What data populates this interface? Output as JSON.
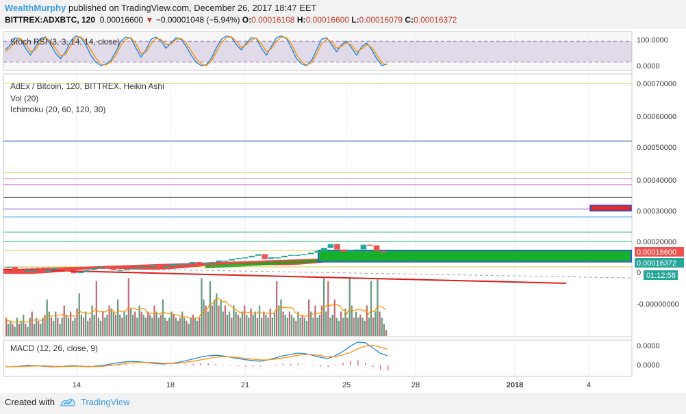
{
  "header": {
    "author": "WealthMurphy",
    "published_text": "published on TradingView.com, December 26, 2017 18:47 EET",
    "symbol": "BITTREX:ADXBTC, 120",
    "last": "0.00016600",
    "change": "−0.00001048 (−5.94%)",
    "o_label": "O:",
    "o_value": "0.00016108",
    "h_label": "H:",
    "h_value": "0.00016600",
    "l_label": "L:",
    "l_value": "0.00016079",
    "c_label": "C:",
    "c_value": "0.00016372"
  },
  "footer": {
    "created_with": "Created with",
    "brand": "TradingView"
  },
  "colors": {
    "bull": "#26a69a",
    "bear": "#ef5350",
    "rsi_band": "#5c2d91",
    "kumo": "#1aa31a",
    "trend_line": "#e0191b",
    "accent": "#3b9de0"
  },
  "chart_data": [
    {
      "type": "line",
      "name": "stoch_rsi",
      "title": "Stoch RSI (3, 3, 14, 14, close)",
      "y_tick_labels": [
        "100.0000",
        "0.0000"
      ],
      "ylim": [
        0,
        100
      ],
      "band": [
        20,
        80
      ],
      "series": [
        {
          "values": [
            55,
            70,
            90,
            85,
            60,
            40,
            65,
            88,
            92,
            70,
            45,
            30,
            50,
            80,
            95,
            90,
            70,
            40,
            20,
            10,
            15,
            25,
            50,
            80,
            92,
            88,
            60,
            35,
            55,
            85,
            92,
            80,
            60,
            75,
            90,
            85,
            65,
            40,
            20,
            10,
            12,
            30,
            60,
            85,
            95,
            92,
            70,
            55,
            75,
            90,
            88,
            60,
            40,
            65,
            90,
            95,
            88,
            60,
            30,
            15,
            10,
            25,
            55,
            85,
            90,
            70,
            50,
            70,
            80,
            60,
            40,
            65,
            75,
            55,
            30,
            10,
            15
          ]
        },
        {
          "values": [
            50,
            62,
            80,
            88,
            72,
            50,
            55,
            78,
            90,
            80,
            58,
            38,
            42,
            68,
            88,
            92,
            80,
            55,
            32,
            15,
            12,
            20,
            40,
            68,
            85,
            90,
            72,
            45,
            48,
            72,
            88,
            85,
            70,
            72,
            85,
            88,
            75,
            52,
            30,
            15,
            10,
            22,
            48,
            75,
            90,
            93,
            80,
            62,
            70,
            84,
            89,
            72,
            50,
            58,
            80,
            92,
            90,
            72,
            42,
            22,
            12,
            18,
            42,
            72,
            86,
            78,
            60,
            65,
            76,
            68,
            50,
            58,
            70,
            62,
            42,
            18,
            12
          ]
        }
      ]
    },
    {
      "type": "candlestick",
      "name": "price",
      "title": "AdEx / Bitcoin, 120, BITTREX, Heikin Ashi",
      "indicators": [
        "Vol (20)",
        "Ichimoku (20, 60, 120, 30)"
      ],
      "x_tick_labels": [
        "14",
        "18",
        "21",
        "25",
        "28",
        "2018",
        "4"
      ],
      "y_tick_labels": [
        "0.00070000",
        "0.00060000",
        "0.00050000",
        "0.00040000",
        "0.00030000",
        "0.00020000",
        "0",
        "-0.00000000"
      ],
      "price_tags": {
        "last": "0.00016600",
        "close": "0.00016372",
        "countdown": "01:12:58"
      },
      "horizontal_levels": [
        0.0007,
        0.000518,
        0.000418,
        0.0004,
        0.00038,
        0.00034,
        0.000303,
        0.000278,
        0.00023,
        0.000201,
        0.000172,
        0.00012
      ],
      "price_path": [
        0.00012,
        0.00011,
        0.000105,
        0.00011,
        0.00011,
        0.000105,
        0.00011,
        0.000115,
        0.00011,
        0.000105,
        0.0001,
        0.000105,
        0.00011,
        0.000115,
        0.00012,
        0.000115,
        0.00011,
        0.00011,
        0.000112,
        0.000115,
        0.00012,
        0.00012,
        0.000125,
        0.00012,
        0.000122,
        0.000128,
        0.00013,
        0.00013,
        0.000135,
        0.000128,
        0.000132,
        0.000135,
        0.00014,
        0.00014,
        0.000145,
        0.000148,
        0.00015,
        0.000155,
        0.00016,
        0.000145,
        0.00015,
        0.00015,
        0.000155,
        0.000158,
        0.000158,
        0.00016,
        0.000165,
        0.00017,
        0.00018,
        0.000192,
        0.000175,
        0.000168,
        0.000172,
        0.000175,
        0.00019,
        0.000188,
        0.00017,
        0.000166
      ],
      "trend_line": [
        [
          0.0001,
          9e-05
        ],
        [
          0.0,
          0.00012
        ]
      ],
      "volume": [
        0.3,
        0.2,
        0.25,
        0.2,
        0.15,
        0.3,
        0.2,
        0.25,
        0.35,
        0.2,
        0.15,
        0.3,
        0.4,
        0.2,
        0.3,
        0.25,
        0.2,
        0.3,
        0.35,
        0.6,
        0.4,
        0.3,
        0.25,
        0.4,
        0.3,
        0.2,
        0.3,
        0.5,
        0.35,
        0.3,
        0.4,
        0.25,
        0.3,
        0.45,
        0.7,
        0.35,
        0.3,
        0.4,
        0.25,
        0.3,
        0.5,
        0.35,
        0.9,
        0.3,
        0.25,
        0.4,
        0.3,
        0.35,
        0.5,
        0.45,
        0.4,
        0.35,
        0.6,
        0.35,
        0.3,
        0.4,
        0.35,
        0.95,
        0.45,
        0.35,
        0.4,
        0.3,
        0.5,
        0.4,
        0.35,
        0.3,
        0.4,
        0.35,
        0.3,
        0.5,
        0.4,
        0.3,
        0.35,
        0.6,
        0.3,
        0.25,
        0.3,
        0.4,
        0.35,
        0.3,
        0.25,
        0.3,
        0.4,
        0.3,
        0.25,
        0.2,
        0.3,
        0.35,
        0.3,
        0.25,
        0.3,
        0.95,
        0.6,
        0.5,
        0.4,
        0.9,
        0.5,
        0.6,
        0.7,
        0.5,
        0.6,
        0.4,
        0.5,
        0.35,
        0.4,
        0.3,
        0.5,
        0.4,
        0.35,
        0.3,
        0.4,
        0.5,
        0.35,
        0.3,
        0.45,
        0.35,
        0.4,
        0.3,
        0.5,
        0.3,
        0.4,
        0.35,
        0.3,
        0.45,
        0.3,
        0.4,
        0.9,
        0.5,
        0.6,
        0.4,
        0.35,
        0.3,
        0.4,
        0.35,
        0.3,
        0.25,
        0.4,
        0.3,
        0.35,
        0.3,
        0.25,
        0.6,
        0.4,
        0.3,
        0.5,
        0.3,
        0.35,
        0.5,
        0.95,
        0.4,
        0.9,
        0.3,
        0.35,
        0.6,
        0.3,
        0.25,
        0.4,
        0.3,
        0.45,
        0.3,
        0.95,
        0.5,
        0.3,
        0.4,
        0.3,
        0.35,
        0.3,
        0.25,
        0.5,
        0.3,
        0.9,
        0.3,
        0.4,
        0.95,
        0.4,
        0.3,
        0.2,
        0.1
      ]
    },
    {
      "type": "line",
      "name": "macd",
      "title": "MACD (12, 26, close, 9)",
      "y_tick_labels": [
        "0.0000",
        "0.0000"
      ],
      "series": [
        {
          "values": [
            0.1,
            0.1,
            0.12,
            0.15,
            0.14,
            0.12,
            0.1,
            0.1,
            0.12,
            0.14,
            0.12,
            0.1,
            0.12,
            0.15,
            0.2,
            0.25,
            0.28,
            0.3,
            0.28,
            0.25,
            0.22,
            0.2,
            0.22,
            0.26,
            0.32,
            0.38,
            0.45,
            0.5,
            0.52,
            0.5,
            0.45,
            0.4,
            0.36,
            0.33,
            0.3,
            0.35,
            0.42,
            0.5,
            0.55,
            0.6,
            0.58,
            0.52,
            0.45,
            0.4,
            0.5,
            0.65,
            0.85,
            1.0,
            0.98,
            0.8,
            0.6,
            0.5
          ]
        },
        {
          "values": [
            0.1,
            0.1,
            0.11,
            0.12,
            0.13,
            0.13,
            0.12,
            0.11,
            0.11,
            0.12,
            0.12,
            0.11,
            0.11,
            0.12,
            0.15,
            0.18,
            0.22,
            0.25,
            0.26,
            0.26,
            0.25,
            0.23,
            0.22,
            0.23,
            0.26,
            0.3,
            0.35,
            0.4,
            0.45,
            0.47,
            0.46,
            0.44,
            0.41,
            0.38,
            0.35,
            0.35,
            0.38,
            0.42,
            0.47,
            0.52,
            0.55,
            0.54,
            0.51,
            0.47,
            0.47,
            0.53,
            0.62,
            0.75,
            0.85,
            0.88,
            0.82,
            0.74
          ]
        }
      ]
    }
  ]
}
